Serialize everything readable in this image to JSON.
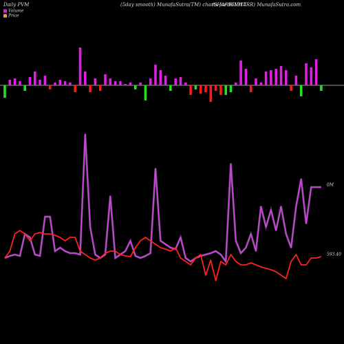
{
  "chart_data": [
    {
      "type": "bar",
      "title": "Daily PVM",
      "subtitle": "(5day smooth) MunafaSutra(TM) charts for 961917",
      "source": "(SHAREINWARR) MunafaSutra.com",
      "ylim": [
        -376,
        124
      ],
      "values": [
        -18,
        8,
        10,
        6,
        -8,
        12,
        20,
        8,
        14,
        -6,
        4,
        8,
        6,
        4,
        -10,
        55,
        20,
        -10,
        10,
        -8,
        16,
        10,
        6,
        6,
        2,
        4,
        -6,
        4,
        -22,
        10,
        30,
        22,
        14,
        -8,
        10,
        12,
        4,
        -14,
        -6,
        -12,
        -10,
        -24,
        -8,
        -14,
        -14,
        -10,
        4,
        36,
        24,
        -10,
        10,
        4,
        20,
        22,
        24,
        28,
        22,
        -8,
        14,
        -16,
        32,
        26,
        38,
        -8
      ],
      "colors": [
        "#22e022",
        "#e020e0",
        "#e020e0",
        "#e020e0",
        "#22e022",
        "#e020e0",
        "#e020e0",
        "#e020e0",
        "#e020e0",
        "#ff1a1a",
        "#e020e0",
        "#e020e0",
        "#e020e0",
        "#e020e0",
        "#ff1a1a",
        "#e020e0",
        "#e020e0",
        "#ff1a1a",
        "#e020e0",
        "#ff1a1a",
        "#e020e0",
        "#e020e0",
        "#e020e0",
        "#e020e0",
        "#e020e0",
        "#e020e0",
        "#22e022",
        "#e020e0",
        "#22e022",
        "#e020e0",
        "#e020e0",
        "#e020e0",
        "#e020e0",
        "#22e022",
        "#e020e0",
        "#e020e0",
        "#e020e0",
        "#ff1a1a",
        "#22e022",
        "#ff1a1a",
        "#ff1a1a",
        "#ff1a1a",
        "#ff1a1a",
        "#ff1a1a",
        "#22e022",
        "#22e022",
        "#e020e0",
        "#e020e0",
        "#e020e0",
        "#ff1a1a",
        "#e020e0",
        "#e020e0",
        "#e020e0",
        "#e020e0",
        "#e020e0",
        "#e020e0",
        "#e020e0",
        "#ff1a1a",
        "#e020e0",
        "#22e022",
        "#e020e0",
        "#e020e0",
        "#e020e0",
        "#22e022"
      ]
    },
    {
      "type": "line",
      "ylim": [
        0,
        500
      ],
      "series": [
        {
          "name": "Volume",
          "color": "#cc44dd",
          "legend_color": "#e020e0",
          "end_label": "0M",
          "values": [
            125,
            128,
            130,
            128,
            160,
            155,
            130,
            128,
            185,
            185,
            135,
            140,
            135,
            132,
            132,
            130,
            305,
            170,
            130,
            125,
            130,
            215,
            125,
            130,
            135,
            150,
            128,
            125,
            128,
            132,
            255,
            150,
            145,
            140,
            138,
            155,
            125,
            120,
            125,
            128,
            130,
            132,
            135,
            130,
            120,
            262,
            150,
            132,
            140,
            160,
            135,
            200,
            170,
            195,
            165,
            200,
            160,
            140,
            200,
            240,
            175,
            228,
            228,
            228
          ]
        },
        {
          "name": "Price",
          "color": "#ff2020",
          "legend_color": "#e8a050",
          "end_label": "593.40",
          "values": [
            125,
            135,
            160,
            165,
            160,
            150,
            160,
            162,
            160,
            160,
            158,
            155,
            150,
            155,
            155,
            135,
            130,
            125,
            122,
            125,
            132,
            135,
            135,
            130,
            128,
            127,
            140,
            150,
            155,
            150,
            145,
            140,
            138,
            135,
            140,
            125,
            120,
            115,
            125,
            130,
            100,
            122,
            92,
            120,
            115,
            130,
            120,
            115,
            115,
            118,
            115,
            112,
            110,
            108,
            105,
            100,
            95,
            120,
            130,
            115,
            115,
            125,
            125,
            127
          ]
        }
      ]
    }
  ]
}
